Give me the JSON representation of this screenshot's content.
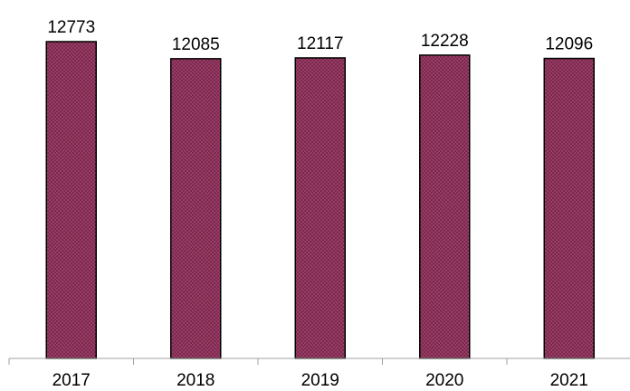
{
  "chart_data": {
    "type": "bar",
    "categories": [
      "2017",
      "2018",
      "2019",
      "2020",
      "2021"
    ],
    "values": [
      12773,
      12085,
      12117,
      12228,
      12096
    ],
    "title": "",
    "xlabel": "",
    "ylabel": "",
    "ylim": [
      0,
      12773
    ],
    "grid": false,
    "legend": "none",
    "data_labels": true,
    "colors": {
      "bar_fill": "#9b3c66",
      "bar_dots": "#5e1d3b",
      "bar_stroke": "#000000",
      "axis": "#a0a0a0"
    }
  }
}
